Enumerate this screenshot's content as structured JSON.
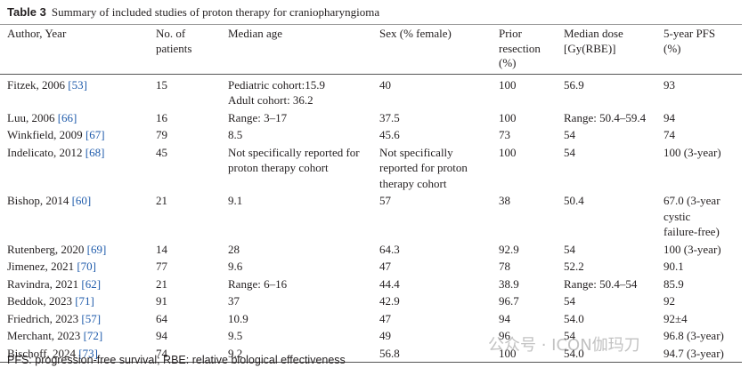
{
  "caption": {
    "label": "Table 3",
    "title": "Summary of included studies of proton therapy for craniopharyngioma"
  },
  "table": {
    "header": [
      "Author, Year",
      [
        "No. of",
        "patients"
      ],
      "Median age",
      "Sex (% female)",
      [
        "Prior",
        "resection",
        "(%)"
      ],
      [
        "Median dose",
        "[Gy(RBE)]"
      ],
      [
        "5-year PFS",
        "(%)"
      ]
    ],
    "rows": [
      [
        {
          "name": "Fitzek, 2006",
          "ref": "[53]"
        },
        "15",
        [
          "Pediatric cohort:15.9",
          "Adult cohort: 36.2"
        ],
        "40",
        "100",
        "56.9",
        "93"
      ],
      [
        {
          "name": "Luu, 2006",
          "ref": "[66]"
        },
        "16",
        "Range: 3–17",
        "37.5",
        "100",
        "Range: 50.4–59.4",
        "94"
      ],
      [
        {
          "name": "Winkfield, 2009",
          "ref": "[67]"
        },
        "79",
        "8.5",
        "45.6",
        "73",
        "54",
        "74"
      ],
      [
        {
          "name": "Indelicato, 2012",
          "ref": "[68]"
        },
        "45",
        [
          "Not specifically reported for",
          "proton therapy cohort"
        ],
        [
          "Not specifically",
          "reported for proton",
          "therapy cohort"
        ],
        "100",
        "54",
        "100 (3-year)"
      ],
      [
        {
          "name": "Bishop, 2014",
          "ref": "[60]"
        },
        "21",
        "9.1",
        "57",
        "38",
        "50.4",
        [
          "67.0 (3-year",
          "cystic",
          "failure-free)"
        ]
      ],
      [
        {
          "name": "Rutenberg, 2020",
          "ref": "[69]"
        },
        "14",
        "28",
        "64.3",
        "92.9",
        "54",
        "100 (3-year)"
      ],
      [
        {
          "name": "Jimenez, 2021",
          "ref": "[70]"
        },
        "77",
        "9.6",
        "47",
        "78",
        "52.2",
        "90.1"
      ],
      [
        {
          "name": "Ravindra, 2021",
          "ref": "[62]"
        },
        "21",
        "Range: 6–16",
        "44.4",
        "38.9",
        "Range: 50.4–54",
        "85.9"
      ],
      [
        {
          "name": "Beddok, 2023",
          "ref": "[71]"
        },
        "91",
        "37",
        "42.9",
        "96.7",
        "54",
        "92"
      ],
      [
        {
          "name": "Friedrich, 2023",
          "ref": "[57]"
        },
        "64",
        "10.9",
        "47",
        "94",
        "54.0",
        "92±4"
      ],
      [
        {
          "name": "Merchant, 2023",
          "ref": "[72]"
        },
        "94",
        "9.5",
        "49",
        "96",
        "54",
        "96.8 (3-year)"
      ],
      [
        {
          "name": "Bischoff, 2024",
          "ref": "[73]"
        },
        "74",
        "9.2",
        "56.8",
        "100",
        "54.0",
        "94.7 (3-year)"
      ]
    ]
  },
  "footnote": "PFS: progression-free survival; RBE: relative biological effectiveness",
  "watermark": "公众号 · ICON伽玛刀"
}
